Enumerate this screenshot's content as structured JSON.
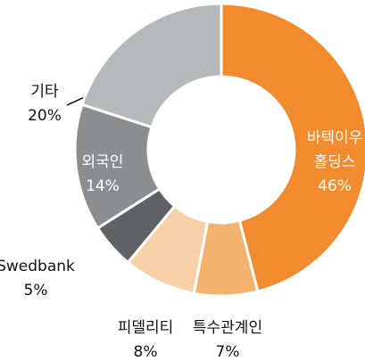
{
  "chart_data": {
    "type": "donut",
    "categories": [
      "바텍이우\n홀딩스",
      "특수관계인",
      "피델리티",
      "Swedbank",
      "외국인",
      "기타"
    ],
    "values": [
      46,
      7,
      8,
      5,
      14,
      20
    ],
    "value_labels": [
      "46%",
      "7%",
      "8%",
      "5%",
      "14%",
      "20%"
    ],
    "colors": [
      "#f28a2e",
      "#f2b16c",
      "#f6d0a6",
      "#5e6265",
      "#8b8e91",
      "#b6b8ba"
    ]
  }
}
